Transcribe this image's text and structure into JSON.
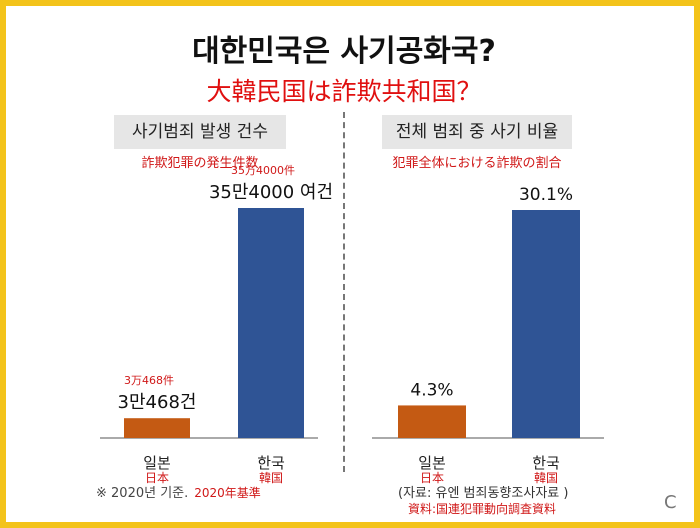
{
  "title": "대한민국은 사기공화국?",
  "subtitle": "大韓民国は詐欺共和国？",
  "footnote": "※ 2020년 기준.",
  "footnote_jp": "2020年基準",
  "source": "(자료: 유엔 범죄동향조사자료 )",
  "source_jp": "資料:国連犯罪動向調査資料",
  "corner_mark": "C",
  "colors": {
    "japan": "#c45a13",
    "korea": "#2f5495",
    "jp_text": "#d01818",
    "accent_bg": "#f3c31a"
  },
  "chart_data": [
    {
      "type": "bar",
      "title": "사기범죄 발생 건수",
      "title_jp": "詐欺犯罪の発生件数",
      "categories": [
        "일본",
        "한국"
      ],
      "categories_jp": [
        "日本",
        "韓国"
      ],
      "values": [
        30468,
        354000
      ],
      "data_labels": [
        "3만468건",
        "35만4000 여건"
      ],
      "data_labels_jp": [
        "3万468件",
        "35万4000件"
      ],
      "ylim": [
        0,
        354000
      ],
      "grid": false
    },
    {
      "type": "bar",
      "title": "전체 범죄 중 사기 비율",
      "title_jp": "犯罪全体における詐欺の割合",
      "categories": [
        "일본",
        "한국"
      ],
      "categories_jp": [
        "日本",
        "韓国"
      ],
      "values": [
        4.3,
        30.1
      ],
      "data_labels": [
        "4.3%",
        "30.1%"
      ],
      "ylim": [
        0,
        30.1
      ],
      "grid": false
    }
  ]
}
